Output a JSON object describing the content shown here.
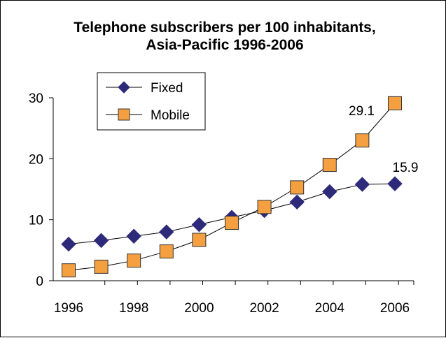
{
  "colors": {
    "fixed": "#2E2A7A",
    "mobile": "#F4A041",
    "line": "#000000",
    "axis": "#000000",
    "marker_stroke": "#333333"
  },
  "chart_data": {
    "type": "line",
    "title_line1": "Telephone subscribers per 100 inhabitants,",
    "title_line2": "Asia-Pacific 1996-2006",
    "xlabel": "",
    "ylabel": "",
    "grid": false,
    "legend_position": "top-left",
    "x": [
      1996,
      1997,
      1998,
      1999,
      2000,
      2001,
      2002,
      2003,
      2004,
      2005,
      2006
    ],
    "xlim": [
      1996,
      2006
    ],
    "x_tick_labels": [
      "1996",
      "1998",
      "2000",
      "2002",
      "2004",
      "2006"
    ],
    "ylim": [
      0,
      30
    ],
    "y_ticks": [
      0,
      10,
      20,
      30
    ],
    "y_tick_labels": [
      "0",
      "10",
      "20",
      "30"
    ],
    "series": [
      {
        "name": "Fixed",
        "marker": "diamond",
        "values": [
          6.0,
          6.6,
          7.3,
          8.0,
          9.2,
          10.4,
          11.5,
          12.9,
          14.6,
          15.8,
          15.9
        ]
      },
      {
        "name": "Mobile",
        "marker": "square",
        "values": [
          1.7,
          2.3,
          3.3,
          4.8,
          6.7,
          9.5,
          12.1,
          15.3,
          19.0,
          23.0,
          29.1
        ]
      }
    ],
    "annotations": [
      {
        "text": "29.1",
        "series": "Mobile",
        "x": 2006,
        "y": 29.1,
        "placement": "left"
      },
      {
        "text": "15.9",
        "series": "Fixed",
        "x": 2006,
        "y": 15.9,
        "placement": "above"
      }
    ]
  }
}
